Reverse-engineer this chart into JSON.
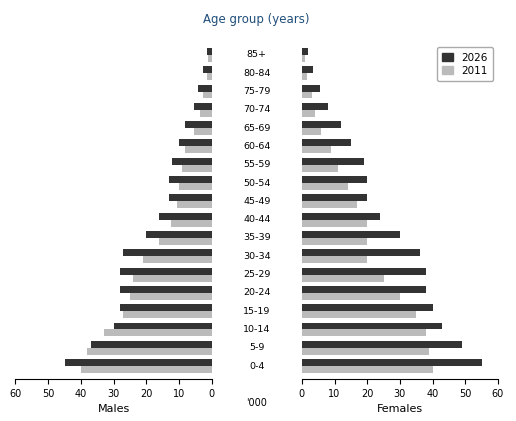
{
  "age_groups": [
    "0-4",
    "5-9",
    "10-14",
    "15-19",
    "20-24",
    "25-29",
    "30-34",
    "35-39",
    "40-44",
    "45-49",
    "50-54",
    "55-59",
    "60-64",
    "65-69",
    "70-74",
    "75-79",
    "80-84",
    "85+"
  ],
  "males_2026": [
    45.0,
    37.0,
    30.0,
    28.0,
    28.0,
    28.0,
    27.0,
    20.0,
    16.0,
    13.0,
    13.0,
    12.0,
    10.0,
    8.0,
    5.5,
    4.0,
    2.5,
    1.5
  ],
  "males_2011": [
    40.0,
    38.0,
    33.0,
    27.0,
    25.0,
    24.0,
    21.0,
    16.0,
    12.5,
    10.5,
    10.0,
    9.0,
    8.0,
    5.5,
    3.5,
    2.5,
    1.5,
    1.0
  ],
  "females_2026": [
    55.0,
    49.0,
    43.0,
    40.0,
    38.0,
    38.0,
    36.0,
    30.0,
    24.0,
    20.0,
    20.0,
    19.0,
    15.0,
    12.0,
    8.0,
    5.5,
    3.5,
    2.0
  ],
  "females_2011": [
    40.0,
    39.0,
    38.0,
    35.0,
    30.0,
    25.0,
    20.0,
    20.0,
    20.0,
    17.0,
    14.0,
    11.0,
    9.0,
    6.0,
    4.0,
    3.0,
    1.5,
    1.0
  ],
  "color_2026": "#333333",
  "color_2011": "#bbbbbb",
  "title": "Age group (years)",
  "title_color": "#1f4e79",
  "xlabel_males": "Males",
  "xlabel_females": "Females",
  "xlabel_unit": "'000",
  "xlim": 60,
  "bar_height": 0.38,
  "legend_2026": "2026",
  "legend_2011": "2011",
  "background_color": "#ffffff"
}
